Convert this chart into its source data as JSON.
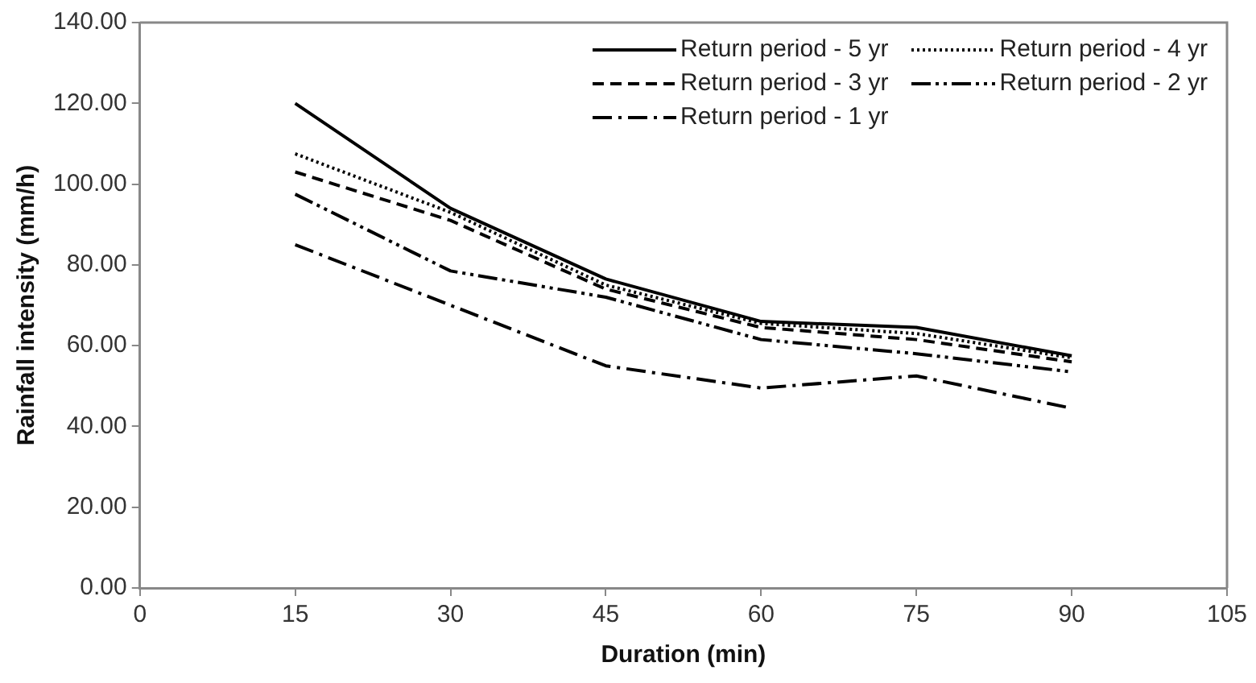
{
  "chart_data": {
    "type": "line",
    "xlabel": "Duration (min)",
    "ylabel": "Rainfall intensity (mm/h)",
    "xlim": [
      0,
      105
    ],
    "xticks": [
      0,
      15,
      30,
      45,
      60,
      75,
      90,
      105
    ],
    "ylim": [
      0,
      140
    ],
    "yticks": [
      {
        "value": 0,
        "label": "0.00"
      },
      {
        "value": 20,
        "label": "20.00"
      },
      {
        "value": 40,
        "label": "40.00"
      },
      {
        "value": 60,
        "label": "60.00"
      },
      {
        "value": 80,
        "label": "80.00"
      },
      {
        "value": 100,
        "label": "100.00"
      },
      {
        "value": 120,
        "label": "120.00"
      },
      {
        "value": 140,
        "label": "140.00"
      }
    ],
    "x": [
      15,
      30,
      45,
      60,
      75,
      90
    ],
    "grid": false,
    "legend": "top right",
    "marker": "none",
    "series": [
      {
        "name": "Return period - 5 yr",
        "color": "#000000",
        "line_style": "solid",
        "values": [
          120,
          94,
          76.5,
          66,
          64.5,
          57.5
        ]
      },
      {
        "name": "Return period - 4 yr",
        "color": "#000000",
        "line_style": "dotted",
        "values": [
          107.5,
          93,
          75,
          65.5,
          63,
          57
        ]
      },
      {
        "name": "Return period - 3 yr",
        "color": "#000000",
        "line_style": "dashed",
        "values": [
          103,
          91,
          74,
          64.5,
          61.5,
          56
        ]
      },
      {
        "name": "Return period - 2 yr",
        "color": "#000000",
        "line_style": "dashdotdot",
        "values": [
          97.5,
          78.5,
          72,
          61.5,
          58,
          53.5
        ]
      },
      {
        "name": "Return period - 1 yr",
        "color": "#000000",
        "line_style": "dashdot",
        "values": [
          85,
          70,
          55,
          49.5,
          52.5,
          44.5
        ]
      }
    ]
  }
}
